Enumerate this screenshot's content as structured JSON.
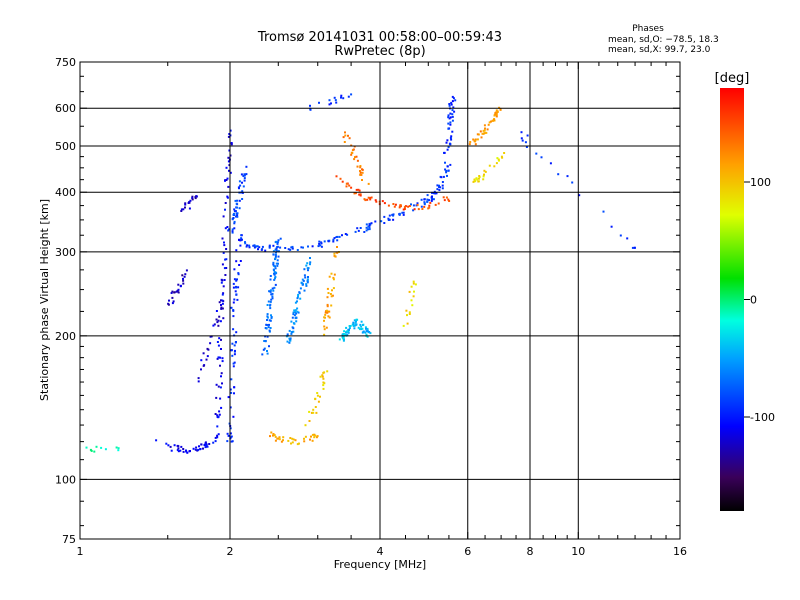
{
  "chart_data": {
    "type": "scatter",
    "title": "Tromsø 20141031 00:58:00–00:59:43",
    "subtitle": "RwPretec (8p)",
    "xlabel": "Frequency [MHz]",
    "ylabel": "Stationary phase Virtual Height [km]",
    "x_scale": "log",
    "y_scale": "log",
    "xlim": [
      1,
      16
    ],
    "ylim": [
      75,
      750
    ],
    "x_ticks": [
      1,
      2,
      4,
      6,
      8,
      10,
      16
    ],
    "y_ticks": [
      75,
      100,
      200,
      300,
      400,
      500,
      600,
      750
    ],
    "x_grid_lines": [
      2,
      4,
      6,
      8,
      10
    ],
    "y_grid_lines": [
      100,
      200,
      300,
      400,
      500,
      600
    ],
    "grid": true,
    "legend_box": {
      "title": "Phases",
      "line1": "mean, sd,O: −78.5, 18.3",
      "line2": "mean, sd,X:  99.7, 23.0"
    },
    "colorbar": {
      "label": "[deg]",
      "min": -180,
      "max": 180,
      "ticks": [
        100,
        0,
        -100
      ],
      "colormap": "rainbow"
    },
    "traces": [
      {
        "f": [
          1.01,
          1.2
        ],
        "h": [
          116,
          116
        ],
        "phase": -10,
        "n": 10
      },
      {
        "f": [
          1.42,
          1.55,
          1.65,
          1.78,
          1.9
        ],
        "h": [
          120,
          116,
          115,
          117,
          122
        ],
        "phase": -110,
        "n": 45
      },
      {
        "f": [
          1.7,
          1.78,
          1.85,
          1.9,
          1.93
        ],
        "h": [
          160,
          180,
          200,
          220,
          240
        ],
        "phase": -118,
        "n": 30
      },
      {
        "f": [
          1.5,
          1.55,
          1.6,
          1.65
        ],
        "h": [
          230,
          245,
          260,
          280
        ],
        "phase": -125,
        "n": 25
      },
      {
        "f": [
          1.58,
          1.62,
          1.66,
          1.7
        ],
        "h": [
          365,
          370,
          380,
          390
        ],
        "phase": -125,
        "n": 18
      },
      {
        "f": [
          1.88,
          1.9,
          1.92,
          1.95,
          1.97,
          2.0
        ],
        "h": [
          120,
          150,
          200,
          280,
          380,
          540
        ],
        "phase": -110,
        "n": 80
      },
      {
        "f": [
          2.0,
          2.02,
          2.05,
          2.1
        ],
        "h": [
          120,
          180,
          250,
          330
        ],
        "phase": -95,
        "n": 70
      },
      {
        "f": [
          2.0,
          2.05,
          2.1,
          2.15
        ],
        "h": [
          330,
          360,
          400,
          450
        ],
        "phase": -85,
        "n": 50
      },
      {
        "f": [
          2.1,
          2.3,
          2.6,
          3.0,
          3.3,
          3.7,
          4.1,
          4.5,
          5.0,
          5.3,
          5.5
        ],
        "h": [
          315,
          305,
          305,
          310,
          320,
          335,
          350,
          365,
          385,
          410,
          460
        ],
        "phase": -88,
        "n": 140
      },
      {
        "f": [
          5.4,
          5.5,
          5.55,
          5.6
        ],
        "h": [
          460,
          520,
          580,
          640
        ],
        "phase": -95,
        "n": 40
      },
      {
        "f": [
          2.35,
          2.4,
          2.45,
          2.5
        ],
        "h": [
          180,
          220,
          270,
          320
        ],
        "phase": -70,
        "n": 90
      },
      {
        "f": [
          2.6,
          2.7,
          2.8,
          2.9
        ],
        "h": [
          190,
          220,
          250,
          290
        ],
        "phase": -60,
        "n": 70
      },
      {
        "f": [
          2.4,
          2.5,
          2.7,
          2.9,
          3.0
        ],
        "h": [
          125,
          122,
          120,
          122,
          125
        ],
        "phase": 110,
        "n": 35
      },
      {
        "f": [
          2.85,
          2.95,
          3.05,
          3.1
        ],
        "h": [
          130,
          140,
          155,
          170
        ],
        "phase": 95,
        "n": 25
      },
      {
        "f": [
          3.1,
          3.15,
          3.2,
          3.25,
          3.3
        ],
        "h": [
          200,
          230,
          260,
          290,
          310
        ],
        "phase": 115,
        "n": 40
      },
      {
        "f": [
          3.3,
          3.6,
          4.0,
          4.5,
          5.0,
          5.5
        ],
        "h": [
          430,
          400,
          380,
          370,
          375,
          390
        ],
        "phase": 150,
        "n": 60
      },
      {
        "f": [
          3.4,
          3.5,
          3.6,
          3.75
        ],
        "h": [
          530,
          500,
          460,
          420
        ],
        "phase": 130,
        "n": 30
      },
      {
        "f": [
          3.35,
          3.45,
          3.6,
          3.8
        ],
        "h": [
          195,
          205,
          215,
          200
        ],
        "phase": -40,
        "n": 70
      },
      {
        "f": [
          4.5,
          4.6,
          4.7
        ],
        "h": [
          210,
          230,
          260
        ],
        "phase": 90,
        "n": 15
      },
      {
        "f": [
          2.9,
          3.0,
          3.2,
          3.5
        ],
        "h": [
          600,
          610,
          620,
          640
        ],
        "phase": -90,
        "n": 15
      },
      {
        "f": [
          6.0,
          6.3,
          6.6,
          7.0
        ],
        "h": [
          500,
          520,
          550,
          600
        ],
        "phase": 120,
        "n": 45
      },
      {
        "f": [
          6.2,
          6.5,
          6.8,
          7.2
        ],
        "h": [
          420,
          440,
          460,
          480
        ],
        "phase": 85,
        "n": 25
      },
      {
        "f": [
          7.5,
          8.0,
          9.0,
          10.0,
          11.5,
          13.0
        ],
        "h": [
          550,
          500,
          450,
          400,
          350,
          300
        ],
        "phase": -90,
        "n": 20
      }
    ]
  }
}
